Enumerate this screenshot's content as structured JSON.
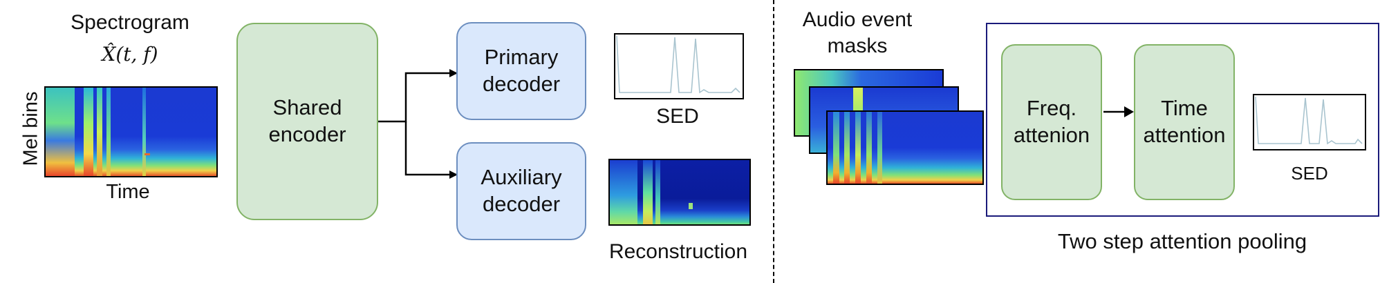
{
  "left": {
    "spectrogram_title": "Spectrogram",
    "spectrogram_symbol": "X̂(t, f)",
    "mel_label": "Mel bins",
    "time_label": "Time",
    "shared_encoder_line1": "Shared",
    "shared_encoder_line2": "encoder",
    "primary_decoder_line1": "Primary",
    "primary_decoder_line2": "decoder",
    "auxiliary_decoder_line1": "Auxiliary",
    "auxiliary_decoder_line2": "decoder",
    "sed_label": "SED",
    "reconstruction_label": "Reconstruction"
  },
  "right": {
    "masks_line1": "Audio event",
    "masks_line2": "masks",
    "freq_attention_line1": "Freq.",
    "freq_attention_line2": "attenion",
    "time_attention_line1": "Time",
    "time_attention_line2": "attention",
    "sed_label": "SED",
    "pooling_caption": "Two step attention pooling"
  },
  "colors": {
    "encoder_fill": "#d5e8d4",
    "encoder_stroke": "#82b366",
    "decoder_fill": "#dae8fc",
    "decoder_stroke": "#6c8ebf",
    "pooling_frame": "#1a1a7a",
    "sed_trace": "#a9c4cf"
  },
  "icons": {
    "spectrogram": "spectrogram-image",
    "sed_curve": "sed-activation-plot"
  }
}
